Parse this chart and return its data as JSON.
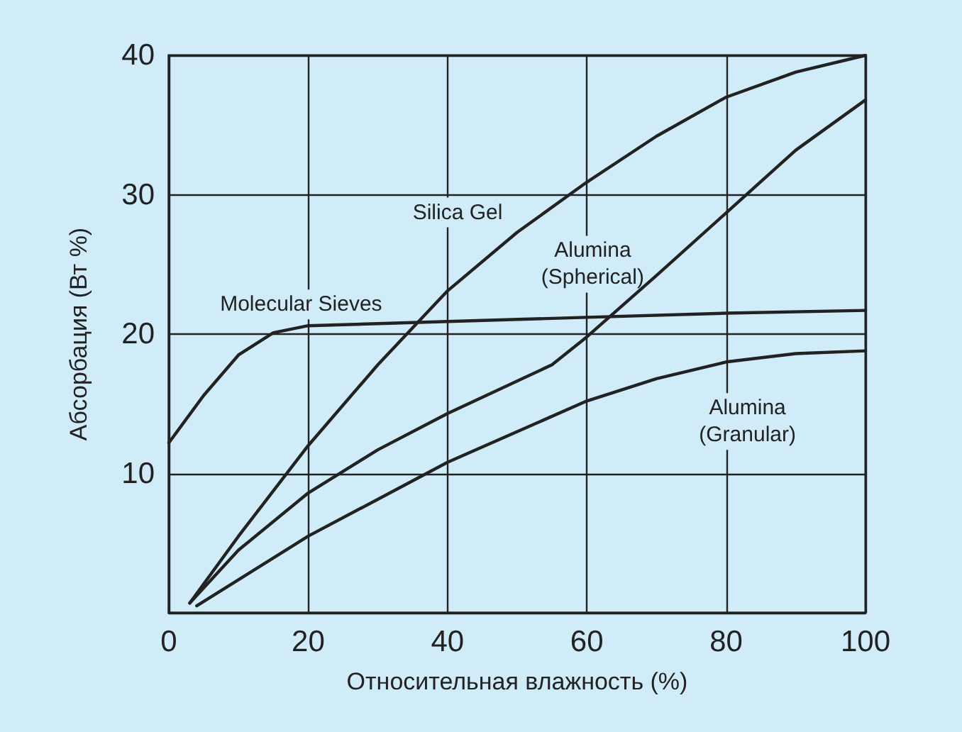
{
  "chart_data": {
    "type": "line",
    "xlabel": "Относительная влажность (%)",
    "ylabel": "Абсорбация (Вт %)",
    "xlim": [
      0,
      100
    ],
    "xticks": [
      0,
      20,
      40,
      60,
      80,
      100
    ],
    "ylim": [
      0,
      40
    ],
    "yticks": [
      {
        "value": 0,
        "label": null
      },
      10,
      20,
      30,
      40
    ],
    "grid": true,
    "legend": false,
    "marker": "none",
    "line_style": "solid",
    "series": [
      {
        "name": "Molecular Sieves",
        "color": "#222222",
        "x": [
          0,
          5,
          10,
          15,
          20,
          40,
          60,
          80,
          100
        ],
        "values": [
          12.2,
          15.6,
          18.5,
          20.1,
          20.6,
          20.9,
          21.2,
          21.5,
          21.7
        ]
      },
      {
        "name": "Silica Gel",
        "color": "#222222",
        "x": [
          3,
          10,
          20,
          30,
          40,
          50,
          60,
          70,
          80,
          90,
          100
        ],
        "values": [
          0.7,
          5.5,
          12.0,
          17.8,
          23.1,
          27.3,
          30.9,
          34.2,
          37.0,
          38.8,
          40
        ]
      },
      {
        "name": "Alumina\n(Spherical)",
        "color": "#222222",
        "x": [
          3,
          10,
          20,
          30,
          40,
          55,
          60,
          70,
          80,
          90,
          100
        ],
        "values": [
          0.7,
          4.5,
          8.6,
          11.7,
          14.3,
          17.8,
          19.8,
          24.2,
          28.7,
          33.2,
          36.8
        ]
      },
      {
        "name": "Alumina\n(Granular)",
        "color": "#222222",
        "x": [
          4,
          20,
          40,
          60,
          70,
          80,
          90,
          100
        ],
        "values": [
          0.5,
          5.5,
          10.8,
          15.2,
          16.8,
          18.0,
          18.6,
          18.8
        ]
      }
    ]
  }
}
